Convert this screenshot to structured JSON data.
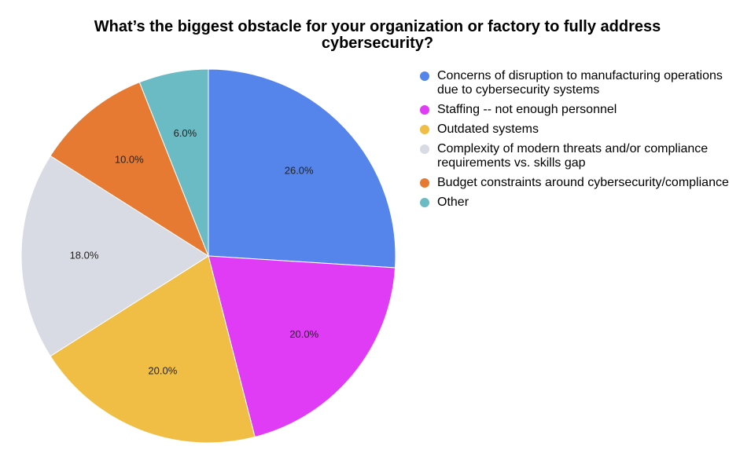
{
  "chart_data": {
    "type": "pie",
    "title": "What’s the biggest obstacle for your organization or factory to fully address cybersecurity?",
    "legend_position": "right",
    "slices": [
      {
        "label": "Concerns of disruption to manufacturing operations due to cybersecurity systems",
        "value": 26.0,
        "display": "26.0%",
        "color": "#5585EB"
      },
      {
        "label": "Staffing -- not enough personnel",
        "value": 20.0,
        "display": "20.0%",
        "color": "#E03CF5"
      },
      {
        "label": "Outdated systems",
        "value": 20.0,
        "display": "20.0%",
        "color": "#F0BE44"
      },
      {
        "label": "Complexity of modern threats and/or compliance requirements vs. skills gap",
        "value": 18.0,
        "display": "18.0%",
        "color": "#D9DBE4"
      },
      {
        "label": "Budget constraints around cybersecurity/compliance",
        "value": 10.0,
        "display": "10.0%",
        "color": "#E67A32"
      },
      {
        "label": "Other",
        "value": 6.0,
        "display": "6.0%",
        "color": "#6ABBC4"
      }
    ]
  }
}
